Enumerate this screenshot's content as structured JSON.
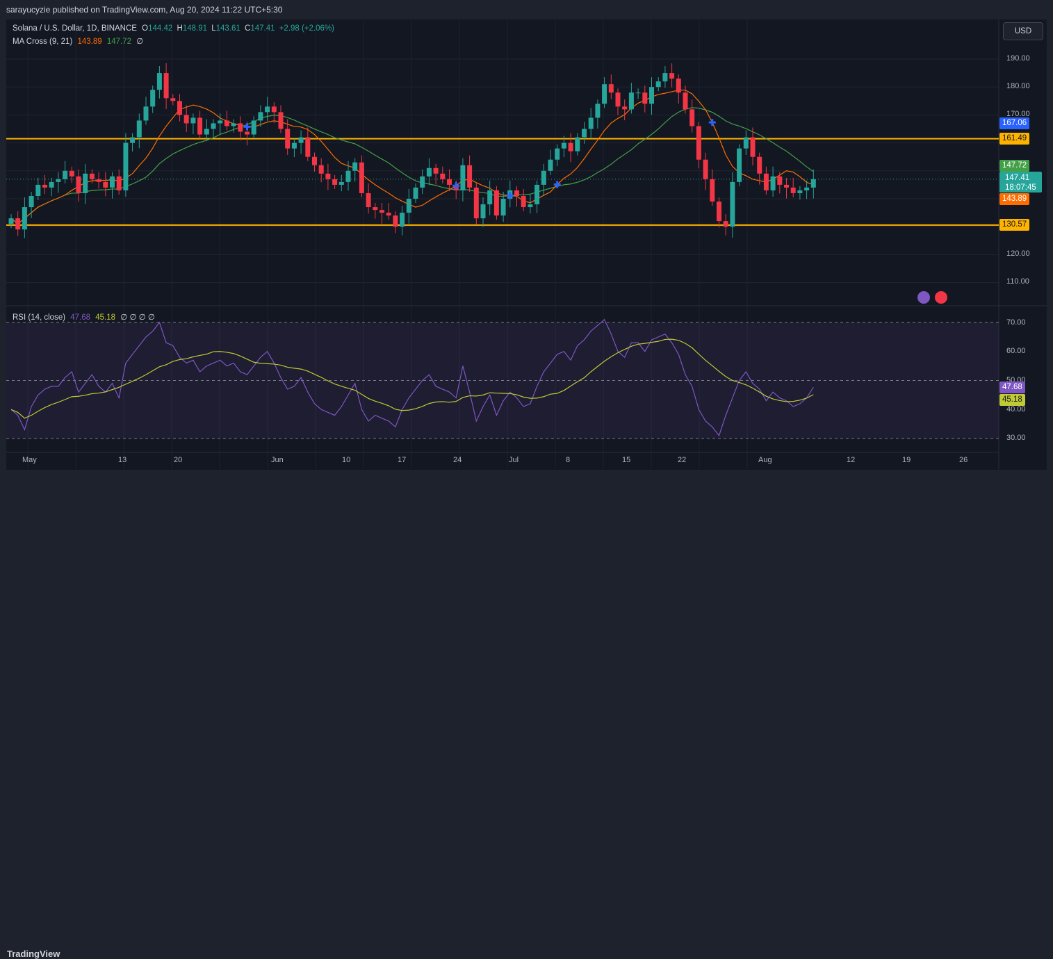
{
  "header": {
    "published": "sarayucyzie published on TradingView.com, Aug 20, 2024 11:22 UTC+5:30"
  },
  "footer": {
    "brand": "TradingView"
  },
  "legend": {
    "symbol": "Solana / U.S. Dollar, 1D, BINANCE",
    "open_label": "O",
    "open": "144.42",
    "high_label": "H",
    "high": "148.91",
    "low_label": "L",
    "low": "143.61",
    "close_label": "C",
    "close": "147.41",
    "change": "+2.98 (+2.06%)",
    "ma_title": "MA Cross (9, 21)",
    "ma_fast": "143.89",
    "ma_slow": "147.72",
    "ma_icon": "∅",
    "rsi_title": "RSI (14, close)",
    "rsi_value": "47.68",
    "rsi_ma": "45.18",
    "rsi_icons": "∅ ∅ ∅ ∅"
  },
  "currency": "USD",
  "price_axis": [
    "190.00",
    "180.00",
    "170.00",
    "120.00",
    "110.00"
  ],
  "rsi_axis": [
    "70.00",
    "60.00",
    "50.00",
    "40.00",
    "30.00"
  ],
  "price_tags": {
    "resistance": "161.49",
    "support": "130.57",
    "ma_slow": "147.72",
    "ma_fast": "143.89",
    "last": "147.41",
    "countdown": "18:07:45",
    "cross_level": "167.06"
  },
  "rsi_tags": {
    "rsi": "47.68",
    "rsi_ma": "45.18"
  },
  "time_axis": [
    "May",
    "13",
    "20",
    "Jun",
    "10",
    "17",
    "24",
    "Jul",
    "8",
    "15",
    "22",
    "Aug",
    "12",
    "19",
    "26"
  ],
  "colors": {
    "up": "#26a69a",
    "down": "#f23645",
    "ma_fast": "#ff6d00",
    "ma_slow": "#43a047",
    "level": "#ffb300",
    "rsi": "#7e57c2",
    "rsi_ma": "#c0ca33",
    "cross": "#2962ff"
  },
  "chart_data": [
    {
      "type": "candlestick",
      "title": "Solana / U.S. Dollar, 1D, BINANCE",
      "ylim": [
        102,
        196
      ],
      "horizontal_levels": [
        161.49,
        130.57
      ],
      "x_ticks": [
        "May",
        "13",
        "20",
        "Jun",
        "10",
        "17",
        "24",
        "Jul",
        "8",
        "15",
        "22",
        "Aug",
        "12",
        "19",
        "26"
      ],
      "series": [
        {
          "name": "OHLC",
          "x_start": "2024-04-30",
          "x_end": "2024-08-20",
          "close": [
            133,
            129,
            137,
            141,
            145,
            144,
            146,
            147,
            150,
            148,
            142,
            149,
            147,
            146,
            144,
            148,
            143,
            160,
            162,
            168,
            173,
            179,
            185,
            176,
            175,
            170,
            167,
            169,
            163,
            165,
            167,
            168,
            166,
            167,
            164,
            163,
            168,
            171,
            173,
            171,
            165,
            158,
            160,
            162,
            155,
            152,
            149,
            147,
            145,
            146,
            150,
            153,
            142,
            137,
            136,
            135,
            134,
            130,
            135,
            140,
            144,
            148,
            151,
            149,
            147,
            145,
            143,
            152,
            144,
            133,
            138,
            143,
            134,
            140,
            143,
            141,
            137,
            138,
            145,
            150,
            154,
            158,
            160,
            157,
            162,
            165,
            169,
            174,
            181,
            178,
            173,
            172,
            178,
            178,
            174,
            180,
            182,
            185,
            183,
            178,
            172,
            166,
            154,
            147,
            139,
            132,
            130,
            146,
            158,
            162,
            155,
            149,
            143,
            148,
            145,
            144,
            142,
            143,
            144,
            147
          ]
        },
        {
          "name": "MA Cross (9, 21) fast",
          "last_value": 143.89
        },
        {
          "name": "MA Cross (9, 21) slow",
          "last_value": 147.72
        }
      ]
    },
    {
      "type": "line",
      "title": "RSI (14, close)",
      "ylim": [
        30,
        70
      ],
      "x_start": "2024-04-30",
      "x_end": "2024-08-20",
      "series": [
        {
          "name": "RSI",
          "values": [
            40,
            38,
            33,
            41,
            45,
            47,
            48,
            48,
            51,
            53,
            46,
            49,
            52,
            48,
            46,
            49,
            44,
            56,
            59,
            62,
            65,
            67,
            70,
            63,
            62,
            58,
            56,
            57,
            53,
            55,
            56,
            57,
            55,
            56,
            53,
            52,
            55,
            58,
            60,
            56,
            51,
            47,
            48,
            51,
            46,
            42,
            40,
            39,
            38,
            41,
            45,
            49,
            40,
            36,
            38,
            37,
            36,
            34,
            40,
            44,
            47,
            50,
            52,
            48,
            47,
            46,
            44,
            55,
            46,
            36,
            41,
            45,
            38,
            43,
            46,
            44,
            41,
            42,
            48,
            53,
            56,
            59,
            60,
            57,
            62,
            64,
            67,
            69,
            71,
            66,
            60,
            58,
            63,
            63,
            60,
            64,
            65,
            66,
            63,
            59,
            52,
            48,
            40,
            36,
            34,
            31,
            38,
            44,
            50,
            53,
            49,
            47,
            43,
            46,
            44,
            43,
            41,
            42,
            44,
            47.68
          ]
        },
        {
          "name": "RSI MA",
          "last_value": 45.18
        }
      ]
    }
  ]
}
